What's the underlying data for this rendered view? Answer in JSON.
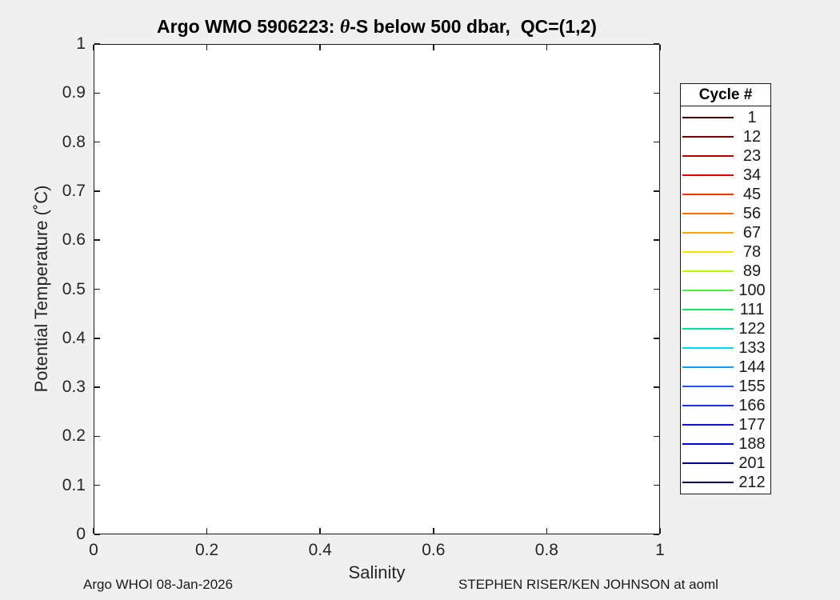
{
  "window": {
    "background": "#f0f0f0"
  },
  "title": {
    "prefix": "Argo WMO 5906223: ",
    "theta": "θ",
    "suffix": "-S below 500 dbar,  QC=(1,2)"
  },
  "axes": {
    "xlabel": "Salinity",
    "ylabel": "Potential Temperature (˚C)",
    "xlim": [
      0,
      1
    ],
    "ylim": [
      0,
      1
    ],
    "xticks": [
      "0",
      "0.2",
      "0.4",
      "0.6",
      "0.8",
      "1"
    ],
    "yticks": [
      "0",
      "0.1",
      "0.2",
      "0.3",
      "0.4",
      "0.5",
      "0.6",
      "0.7",
      "0.8",
      "0.9",
      "1"
    ]
  },
  "legend": {
    "title": "Cycle #",
    "entries": [
      {
        "label": "1",
        "color": "#400000"
      },
      {
        "label": "12",
        "color": "#7b0000"
      },
      {
        "label": "23",
        "color": "#b30000"
      },
      {
        "label": "34",
        "color": "#e60000"
      },
      {
        "label": "45",
        "color": "#ff3300"
      },
      {
        "label": "56",
        "color": "#ff6f00"
      },
      {
        "label": "67",
        "color": "#ffa800"
      },
      {
        "label": "78",
        "color": "#ffe000"
      },
      {
        "label": "89",
        "color": "#b9f400"
      },
      {
        "label": "100",
        "color": "#50ed45"
      },
      {
        "label": "111",
        "color": "#14e763"
      },
      {
        "label": "122",
        "color": "#00e0a4"
      },
      {
        "label": "133",
        "color": "#00dcec"
      },
      {
        "label": "144",
        "color": "#1899ff"
      },
      {
        "label": "155",
        "color": "#2156f2"
      },
      {
        "label": "166",
        "color": "#1f30e2"
      },
      {
        "label": "177",
        "color": "#0d12d6"
      },
      {
        "label": "188",
        "color": "#0004dd"
      },
      {
        "label": "201",
        "color": "#000090"
      },
      {
        "label": "212",
        "color": "#000052"
      }
    ]
  },
  "footer": {
    "left": "Argo WHOI 08-Jan-2026",
    "right": "STEPHEN RISER/KEN JOHNSON at aoml"
  },
  "chart_data": {
    "type": "line",
    "title": "Argo WMO 5906223: θ-S below 500 dbar,  QC=(1,2)",
    "xlabel": "Salinity",
    "ylabel": "Potential Temperature (°C)",
    "xlim": [
      0,
      1
    ],
    "ylim": [
      0,
      1
    ],
    "xticks": [
      0,
      0.2,
      0.4,
      0.6,
      0.8,
      1
    ],
    "yticks": [
      0,
      0.1,
      0.2,
      0.3,
      0.4,
      0.5,
      0.6,
      0.7,
      0.8,
      0.9,
      1
    ],
    "grid": false,
    "legend_position": "outside-right",
    "legend_title": "Cycle #",
    "series": [
      {
        "name": "1",
        "color": "#400000",
        "x": [],
        "y": []
      },
      {
        "name": "12",
        "color": "#7b0000",
        "x": [],
        "y": []
      },
      {
        "name": "23",
        "color": "#b30000",
        "x": [],
        "y": []
      },
      {
        "name": "34",
        "color": "#e60000",
        "x": [],
        "y": []
      },
      {
        "name": "45",
        "color": "#ff3300",
        "x": [],
        "y": []
      },
      {
        "name": "56",
        "color": "#ff6f00",
        "x": [],
        "y": []
      },
      {
        "name": "67",
        "color": "#ffa800",
        "x": [],
        "y": []
      },
      {
        "name": "78",
        "color": "#ffe000",
        "x": [],
        "y": []
      },
      {
        "name": "89",
        "color": "#b9f400",
        "x": [],
        "y": []
      },
      {
        "name": "100",
        "color": "#50ed45",
        "x": [],
        "y": []
      },
      {
        "name": "111",
        "color": "#14e763",
        "x": [],
        "y": []
      },
      {
        "name": "122",
        "color": "#00e0a4",
        "x": [],
        "y": []
      },
      {
        "name": "133",
        "color": "#00dcec",
        "x": [],
        "y": []
      },
      {
        "name": "144",
        "color": "#1899ff",
        "x": [],
        "y": []
      },
      {
        "name": "155",
        "color": "#2156f2",
        "x": [],
        "y": []
      },
      {
        "name": "166",
        "color": "#1f30e2",
        "x": [],
        "y": []
      },
      {
        "name": "177",
        "color": "#0d12d6",
        "x": [],
        "y": []
      },
      {
        "name": "188",
        "color": "#0004dd",
        "x": [],
        "y": []
      },
      {
        "name": "201",
        "color": "#000090",
        "x": [],
        "y": []
      },
      {
        "name": "212",
        "color": "#000052",
        "x": [],
        "y": []
      }
    ]
  }
}
